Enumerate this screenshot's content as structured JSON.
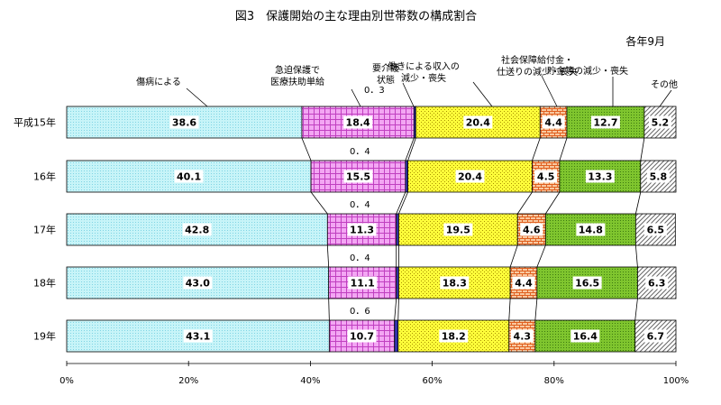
{
  "chart_data": {
    "type": "bar",
    "stacked": "percent",
    "orientation": "horizontal",
    "title": "図3　保護開始の主な理由別世帯数の構成割合",
    "note": "各年9月",
    "categories": [
      "平成15年",
      "16年",
      "17年",
      "18年",
      "19年"
    ],
    "xlim": [
      0,
      100
    ],
    "x_ticks": [
      "0%",
      "20%",
      "40%",
      "60%",
      "80%",
      "100%"
    ],
    "legend": "callouts",
    "series": [
      {
        "name": "傷病による",
        "values": [
          38.6,
          40.1,
          42.8,
          43.0,
          43.1
        ],
        "color": "#c7f4f8",
        "pattern": "dots-blue"
      },
      {
        "name": "急迫保護で医療扶助単給",
        "values": [
          18.4,
          15.5,
          11.3,
          11.1,
          10.7
        ],
        "color": "#f3a6f3",
        "pattern": "grid-purple"
      },
      {
        "name": "要介護状態",
        "values": [
          0.3,
          0.4,
          0.4,
          0.4,
          0.6
        ],
        "color": "#3333aa",
        "pattern": "solid"
      },
      {
        "name": "働きによる収入の減少・喪失",
        "values": [
          20.4,
          20.4,
          19.5,
          18.3,
          18.2
        ],
        "color": "#ffff3a",
        "pattern": "dots-gold"
      },
      {
        "name": "社会保障給付金・仕送りの減少・喪失",
        "values": [
          4.4,
          4.5,
          4.6,
          4.4,
          4.3
        ],
        "color": "#f8c8a0",
        "pattern": "brick"
      },
      {
        "name": "貯金等の減少・喪失",
        "values": [
          12.7,
          13.3,
          14.8,
          16.5,
          16.4
        ],
        "color": "#7fc52e",
        "pattern": "dots-green"
      },
      {
        "name": "その他",
        "values": [
          5.2,
          5.8,
          6.5,
          6.3,
          6.7
        ],
        "color": "#ffffff",
        "pattern": "diag"
      }
    ],
    "small_value_labels": [
      "0．3",
      "0．4",
      "0．4",
      "0．4",
      "0．6"
    ]
  }
}
